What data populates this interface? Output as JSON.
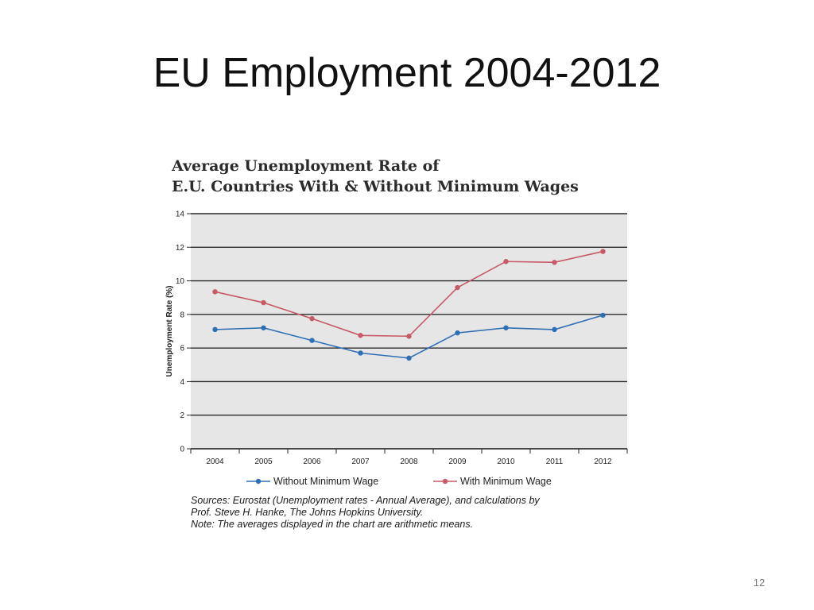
{
  "slide": {
    "title": "EU Employment 2004-2012",
    "page_number": "12"
  },
  "chart_data": {
    "type": "line",
    "title_lines": [
      "Average Unemployment Rate of",
      "E.U. Countries With & Without Minimum Wages"
    ],
    "xlabel": "",
    "ylabel": "Unemployment Rate (%)",
    "categories": [
      "2004",
      "2005",
      "2006",
      "2007",
      "2008",
      "2009",
      "2010",
      "2011",
      "2012"
    ],
    "ylim": [
      0,
      14
    ],
    "yticks": [
      0,
      2,
      4,
      6,
      8,
      10,
      12,
      14
    ],
    "grid": true,
    "legend_position": "bottom",
    "series": [
      {
        "name": "Without Minimum Wage",
        "color": "#2e6fb5",
        "values": [
          7.1,
          7.2,
          6.45,
          5.7,
          5.4,
          6.9,
          7.2,
          7.1,
          7.95
        ]
      },
      {
        "name": "With Minimum Wage",
        "color": "#c85a68",
        "values": [
          9.35,
          8.7,
          7.75,
          6.75,
          6.7,
          9.6,
          11.15,
          11.1,
          11.75
        ]
      }
    ],
    "notes": [
      "Sources: Eurostat (Unemployment rates - Annual Average), and calculations by",
      "Prof. Steve H. Hanke, The Johns Hopkins University.",
      "Note: The averages displayed in the chart are arithmetic means."
    ],
    "colors": {
      "plot_background": "#e6e6e6",
      "gridline": "#2a2a2a"
    }
  }
}
